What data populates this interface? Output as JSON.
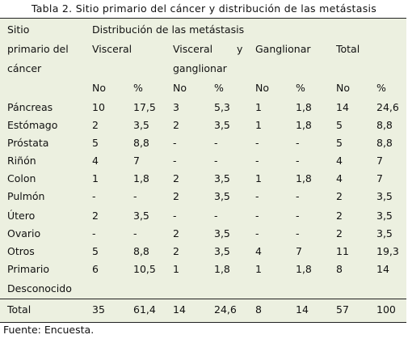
{
  "caption": "Tabla 2. Sitio primario del cáncer y distribución de las metástasis",
  "header": {
    "site_line1": "Sitio",
    "site_line2": "primario del",
    "site_line3": "cáncer",
    "distribution": "Distribución de las metástasis",
    "visceral": "Visceral",
    "visceral_ganglionar_1": "Visceral",
    "visceral_ganglionar_y": "y",
    "visceral_ganglionar_2": "ganglionar",
    "ganglionar": "Ganglionar",
    "total": "Total",
    "sub": [
      "No",
      "%",
      "No",
      "%",
      "No",
      "%",
      "No",
      "%"
    ]
  },
  "rows": [
    {
      "site": "Páncreas",
      "values": [
        "10",
        "17,5",
        "3",
        "5,3",
        "1",
        "1,8",
        "14",
        "24,6"
      ]
    },
    {
      "site": "Estómago",
      "values": [
        "2",
        "3,5",
        "2",
        "3,5",
        "1",
        "1,8",
        "5",
        "8,8"
      ]
    },
    {
      "site": "Próstata",
      "values": [
        "5",
        "8,8",
        "-",
        "-",
        "-",
        "-",
        "5",
        "8,8"
      ]
    },
    {
      "site": "Riñón",
      "values": [
        "4",
        "7",
        "-",
        "-",
        "-",
        "-",
        "4",
        "7"
      ]
    },
    {
      "site": "Colon",
      "values": [
        "1",
        "1,8",
        "2",
        "3,5",
        "1",
        "1,8",
        "4",
        "7"
      ]
    },
    {
      "site": "Pulmón",
      "values": [
        "-",
        "-",
        "2",
        "3,5",
        "-",
        "-",
        "2",
        "3,5"
      ]
    },
    {
      "site": "Útero",
      "values": [
        "2",
        "3,5",
        "-",
        "-",
        "-",
        "-",
        "2",
        "3,5"
      ]
    },
    {
      "site": "Ovario",
      "values": [
        "-",
        "-",
        "2",
        "3,5",
        "-",
        "-",
        "2",
        "3,5"
      ]
    },
    {
      "site": "Otros",
      "values": [
        "5",
        "8,8",
        "2",
        "3,5",
        "4",
        "7",
        "11",
        "19,3"
      ]
    },
    {
      "site": "Primario",
      "site2": "Desconocido",
      "values": [
        "6",
        "10,5",
        "1",
        "1,8",
        "1",
        "1,8",
        "8",
        "14"
      ]
    }
  ],
  "total_row": {
    "site": "Total",
    "values": [
      "35",
      "61,4",
      "14",
      "24,6",
      "8",
      "14",
      "57",
      "100"
    ]
  },
  "source": "Fuente: Encuesta.",
  "colors": {
    "table_background": "#ecf0e0",
    "rule": "#222222",
    "text": "#111111"
  }
}
